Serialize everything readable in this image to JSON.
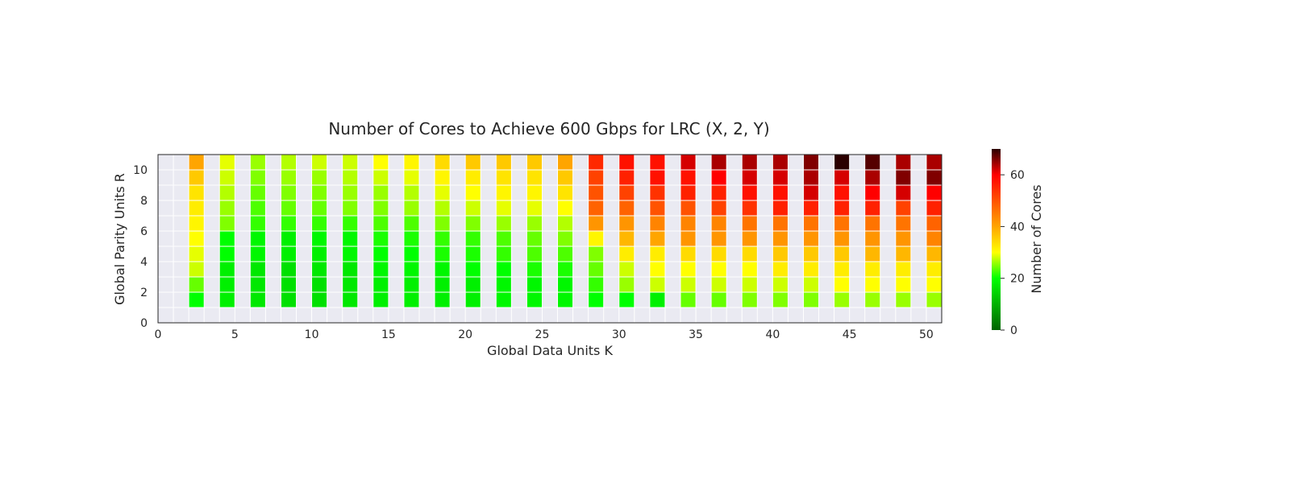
{
  "chart_data": {
    "type": "heatmap",
    "title": "Number of Cores to Achieve 600 Gbps for LRC (X, 2, Y)",
    "xlabel": "Global Data Units K",
    "ylabel": "Global Parity Units R",
    "colorbar_label": "Number of Cores",
    "xlim": [
      0,
      51
    ],
    "ylim": [
      0,
      11
    ],
    "x_ticks": [
      0,
      5,
      10,
      15,
      20,
      25,
      30,
      35,
      40,
      45,
      50
    ],
    "y_ticks": [
      0,
      2,
      4,
      6,
      8,
      10
    ],
    "colorbar_ticks": [
      0,
      20,
      40,
      60
    ],
    "color_range": [
      0,
      70
    ],
    "colormap": [
      {
        "v": 0,
        "c": "#006400"
      },
      {
        "v": 20,
        "c": "#00ff00"
      },
      {
        "v": 30,
        "c": "#ffff00"
      },
      {
        "v": 40,
        "c": "#ffa500"
      },
      {
        "v": 60,
        "c": "#ff0000"
      },
      {
        "v": 70,
        "c": "#2b0000"
      }
    ],
    "background_color": "#eaeaf2",
    "grid": true,
    "x": [
      2,
      4,
      6,
      8,
      10,
      12,
      14,
      16,
      18,
      20,
      22,
      24,
      26,
      28,
      30,
      32,
      34,
      36,
      38,
      40,
      42,
      44,
      46,
      48,
      50
    ],
    "y": [
      1,
      2,
      3,
      4,
      5,
      6,
      7,
      8,
      9,
      10
    ],
    "values": [
      [
        20,
        24,
        28,
        29,
        30,
        31,
        32,
        33,
        36,
        40
      ],
      [
        18,
        18,
        18,
        20,
        20,
        25,
        26,
        27,
        28,
        29
      ],
      [
        17,
        17,
        17,
        19,
        19,
        22,
        23,
        24,
        25,
        26
      ],
      [
        16,
        16,
        16,
        18,
        18,
        22,
        24,
        25,
        26,
        27
      ],
      [
        16,
        16,
        17,
        18,
        19,
        22,
        24,
        25,
        26,
        28
      ],
      [
        17,
        17,
        17,
        19,
        19,
        22,
        25,
        26,
        27,
        28
      ],
      [
        18,
        18,
        19,
        20,
        21,
        23,
        25,
        26,
        28,
        30
      ],
      [
        18,
        18,
        19,
        20,
        21,
        23,
        26,
        27,
        29,
        31
      ],
      [
        18,
        18,
        19,
        21,
        22,
        25,
        27,
        29,
        31,
        34
      ],
      [
        18,
        18,
        20,
        21,
        22,
        25,
        28,
        30,
        32,
        36
      ],
      [
        19,
        19,
        20,
        22,
        23,
        26,
        29,
        31,
        33,
        36
      ],
      [
        19,
        19,
        21,
        23,
        24,
        26,
        29,
        31,
        33,
        36
      ],
      [
        19,
        19,
        21,
        23,
        25,
        27,
        30,
        33,
        36,
        40
      ],
      [
        20,
        22,
        24,
        25,
        31,
        42,
        48,
        50,
        52,
        55
      ],
      [
        20,
        26,
        28,
        32,
        38,
        42,
        48,
        52,
        56,
        58
      ],
      [
        18,
        28,
        30,
        32,
        40,
        44,
        50,
        54,
        58,
        58
      ],
      [
        24,
        28,
        30,
        34,
        42,
        44,
        50,
        56,
        58,
        62
      ],
      [
        24,
        28,
        30,
        34,
        42,
        44,
        52,
        56,
        60,
        64
      ],
      [
        25,
        28,
        30,
        34,
        42,
        46,
        54,
        58,
        62,
        64
      ],
      [
        25,
        28,
        32,
        36,
        42,
        46,
        56,
        58,
        62,
        64
      ],
      [
        25,
        28,
        32,
        36,
        42,
        46,
        56,
        62,
        64,
        66
      ],
      [
        26,
        30,
        32,
        36,
        42,
        46,
        56,
        58,
        62,
        70
      ],
      [
        26,
        30,
        32,
        38,
        42,
        46,
        56,
        60,
        64,
        68
      ],
      [
        26,
        30,
        32,
        38,
        42,
        46,
        52,
        62,
        66,
        64
      ],
      [
        26,
        30,
        32,
        38,
        44,
        48,
        56,
        60,
        66,
        64
      ]
    ]
  }
}
